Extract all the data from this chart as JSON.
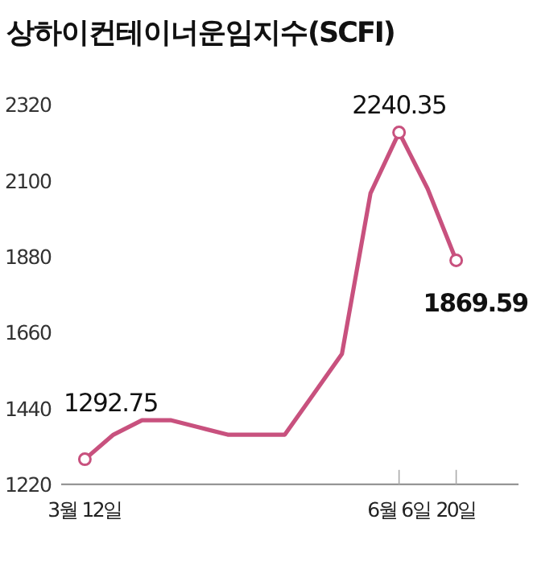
{
  "chart_data": {
    "type": "line",
    "title": "상하이컨테이너운임지수(SCFI)",
    "categories": [
      "3월 12일",
      null,
      null,
      null,
      null,
      null,
      null,
      null,
      null,
      null,
      null,
      "6월 6일",
      null,
      "20일"
    ],
    "series": [
      {
        "color": "#c8517e",
        "values": [
          1292.75,
          1364,
          1406,
          1406,
          1385,
          1364,
          1364,
          1364,
          1481,
          1598,
          2064,
          2240.35,
          2077,
          1869.59
        ],
        "value_labels": [
          "1292.75",
          null,
          null,
          null,
          null,
          null,
          null,
          null,
          null,
          null,
          null,
          "2240.35",
          null,
          "1869.59"
        ]
      }
    ],
    "ylim": [
      1220,
      2320
    ],
    "yticks": [
      1220,
      1440,
      1660,
      1880,
      2100,
      2320
    ]
  }
}
